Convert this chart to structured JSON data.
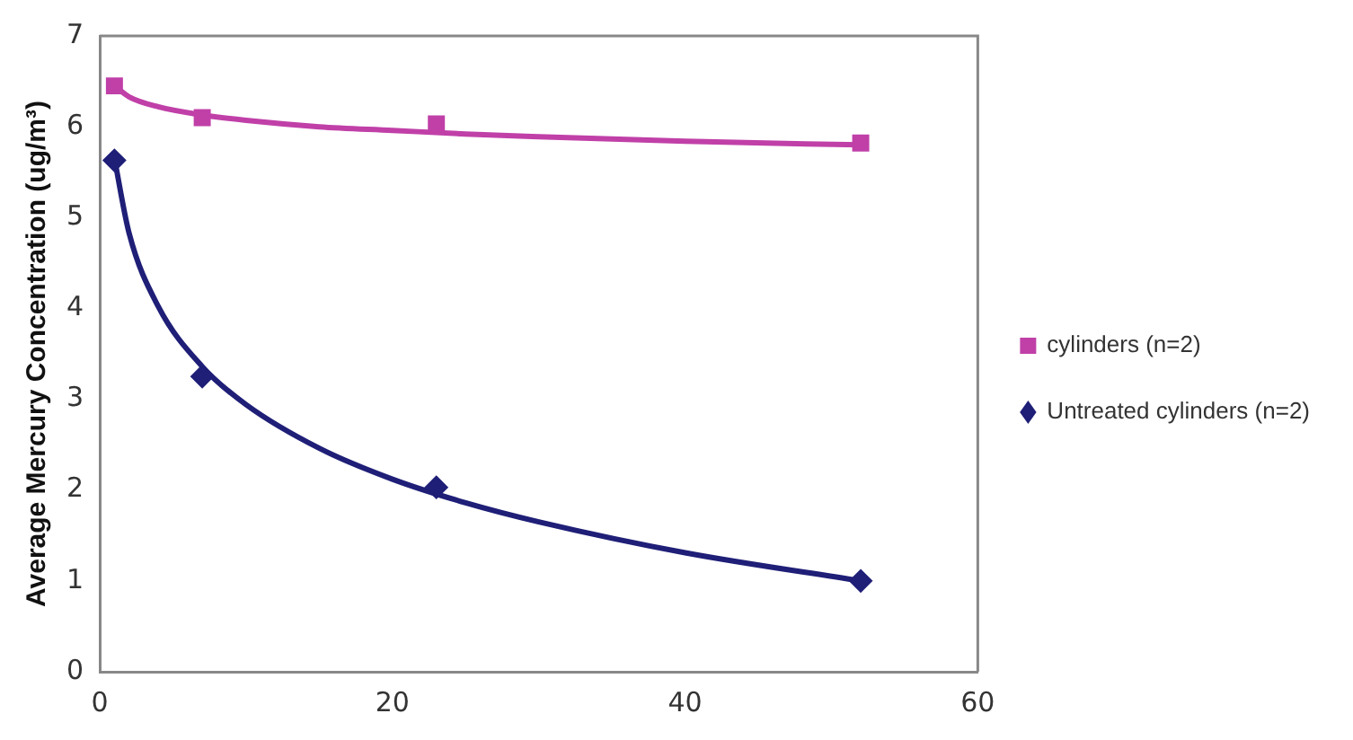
{
  "chart_data": {
    "type": "scatter",
    "ylabel": "Average Mercury Concentration (ug/m³)",
    "xlim": [
      0,
      60
    ],
    "xticks": [
      0,
      20,
      40,
      60
    ],
    "ylim": [
      0,
      7
    ],
    "yticks": [
      0,
      1,
      2,
      3,
      4,
      5,
      6,
      7
    ],
    "grid": false,
    "legend": "right",
    "series": [
      {
        "name": "cylinders (n=2)",
        "color": "#c040a8",
        "marker": "square",
        "x": [
          1,
          7,
          23,
          52
        ],
        "values": [
          6.45,
          6.1,
          6.03,
          5.82
        ]
      },
      {
        "name": "Untreated cylinders (n=2)",
        "color": "#1f1f78",
        "marker": "diamond",
        "x": [
          1,
          7,
          23,
          52
        ],
        "values": [
          5.63,
          3.25,
          2.03,
          1.0
        ]
      },
      {
        "type": "line",
        "color": "#c040a8",
        "marker": "none",
        "x": [
          1,
          2,
          4,
          7,
          10,
          15,
          20,
          25,
          30,
          40,
          52
        ],
        "values": [
          6.45,
          6.33,
          6.22,
          6.13,
          6.07,
          6.0,
          5.96,
          5.92,
          5.89,
          5.84,
          5.8
        ]
      },
      {
        "type": "line",
        "color": "#1f1f78",
        "marker": "none",
        "x": [
          1,
          2,
          4,
          7,
          10,
          15,
          20,
          25,
          30,
          40,
          52
        ],
        "values": [
          5.65,
          4.83,
          4.02,
          3.36,
          2.94,
          2.46,
          2.12,
          1.86,
          1.65,
          1.31,
          1.0
        ]
      }
    ]
  }
}
